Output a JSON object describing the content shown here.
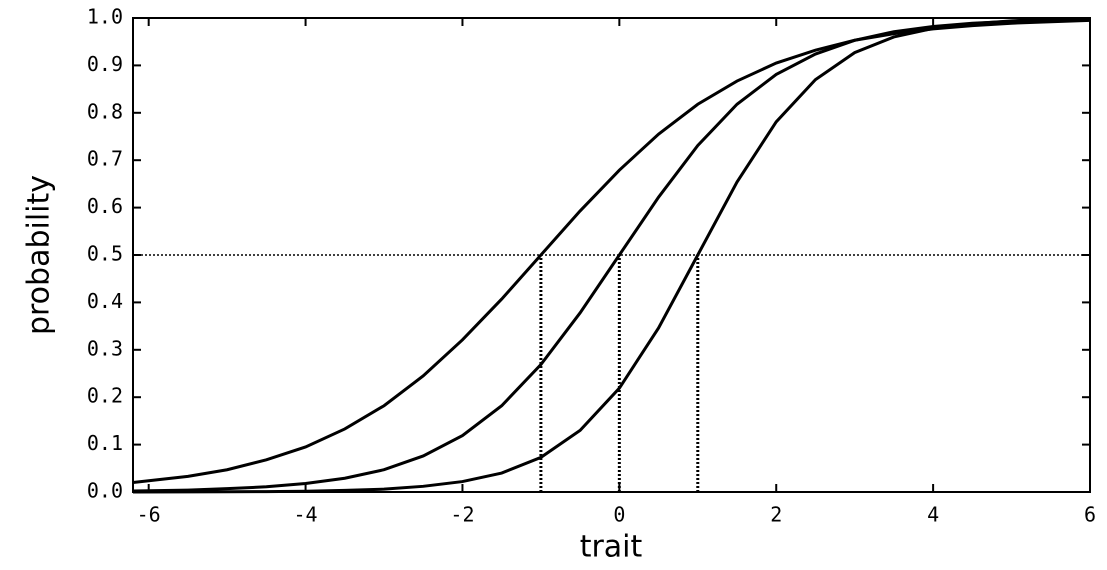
{
  "chart_data": {
    "type": "line",
    "xlabel": "trait",
    "ylabel": "probability",
    "x": [
      -6.2,
      -5.5,
      -5,
      -4.5,
      -4,
      -3.5,
      -3,
      -2.5,
      -2,
      -1.5,
      -1,
      -0.5,
      0,
      0.5,
      1,
      1.5,
      2,
      2.5,
      3,
      3.5,
      4,
      4.5,
      5,
      5.5,
      6
    ],
    "series": [
      {
        "color": "#000000",
        "values": [
          0.02,
          0.033,
          0.047,
          0.068,
          0.095,
          0.133,
          0.182,
          0.245,
          0.321,
          0.407,
          0.5,
          0.593,
          0.679,
          0.755,
          0.818,
          0.867,
          0.905,
          0.932,
          0.953,
          0.967,
          0.977,
          0.984,
          0.989,
          0.992,
          0.995
        ]
      },
      {
        "color": "#000000",
        "values": [
          0.002,
          0.004,
          0.007,
          0.011,
          0.018,
          0.029,
          0.047,
          0.076,
          0.119,
          0.182,
          0.269,
          0.378,
          0.5,
          0.622,
          0.731,
          0.818,
          0.881,
          0.924,
          0.953,
          0.971,
          0.982,
          0.989,
          0.993,
          0.996,
          0.998
        ]
      },
      {
        "color": "#000000",
        "values": [
          0.0001,
          0.0003,
          0.0005,
          0.0009,
          0.0017,
          0.0033,
          0.006,
          0.012,
          0.022,
          0.04,
          0.073,
          0.13,
          0.219,
          0.346,
          0.5,
          0.654,
          0.781,
          0.87,
          0.927,
          0.96,
          0.978,
          0.988,
          0.994,
          0.997,
          0.998
        ]
      }
    ],
    "reference_lines": {
      "y": 0.5,
      "x": [
        -1,
        0,
        1
      ]
    },
    "xlim": [
      -6.2,
      6
    ],
    "xticks": [
      -6,
      -4,
      -2,
      0,
      2,
      4,
      6
    ],
    "ylim": [
      0,
      1
    ],
    "yticks": [
      {
        "value": 0,
        "label": "0.0"
      },
      0.1,
      0.2,
      0.3,
      0.4,
      0.5,
      0.6,
      0.7,
      0.8,
      0.9,
      {
        "value": 1,
        "label": "1.0"
      }
    ],
    "grid": false
  }
}
